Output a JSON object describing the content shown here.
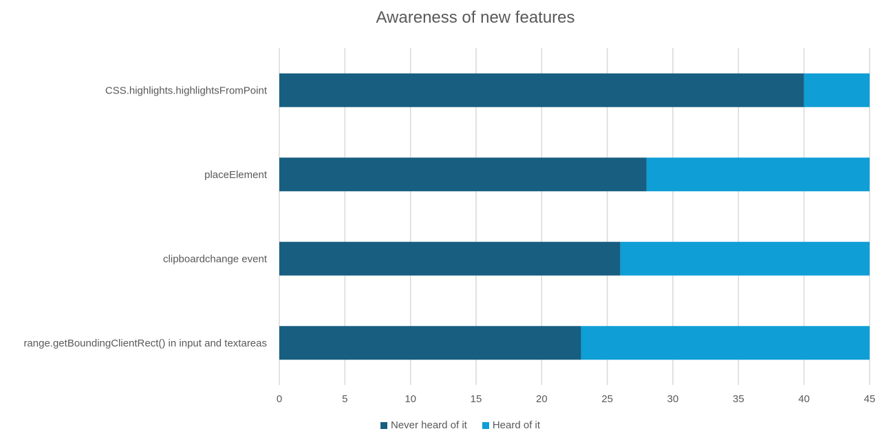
{
  "chart_data": {
    "type": "bar",
    "orientation": "horizontal",
    "stacked": true,
    "title": "Awareness of new features",
    "xlabel": "",
    "ylabel": "",
    "categories": [
      "CSS.highlights.highlightsFromPoint",
      "placeElement",
      "clipboardchange event",
      "range.getBoundingClientRect() in input and textareas"
    ],
    "series": [
      {
        "name": "Never heard of it",
        "values": [
          40,
          28,
          26,
          23
        ],
        "color": "#175E81"
      },
      {
        "name": "Heard of it",
        "values": [
          5,
          17,
          19,
          22
        ],
        "color": "#0F9ED5"
      }
    ],
    "xlim": [
      0,
      45
    ],
    "xticks": [
      "0",
      "5",
      "10",
      "15",
      "20",
      "25",
      "30",
      "35",
      "40",
      "45"
    ],
    "grid": true,
    "legend_position": "bottom"
  }
}
